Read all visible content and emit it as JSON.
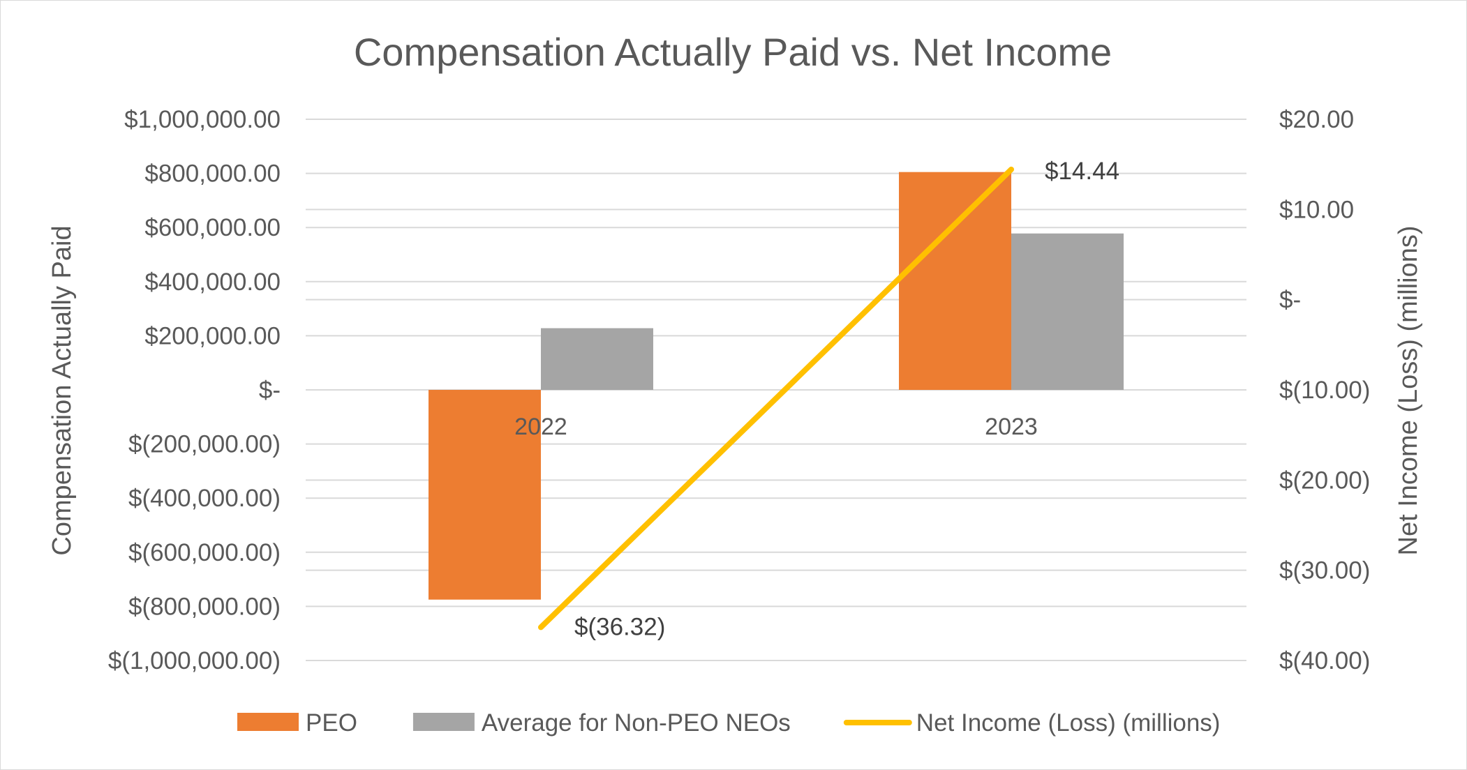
{
  "chart_data": {
    "type": "bar",
    "title": "Compensation Actually Paid vs. Net Income",
    "categories": [
      "2022",
      "2023"
    ],
    "series": [
      {
        "name": "PEO",
        "axis": "left",
        "kind": "bar",
        "color": "#ED7D31",
        "values": [
          -775000,
          805000
        ]
      },
      {
        "name": "Average for Non-PEO NEOs",
        "axis": "left",
        "kind": "bar",
        "color": "#A5A5A5",
        "values": [
          228000,
          578000
        ]
      },
      {
        "name": "Net Income (Loss) (millions)",
        "axis": "right",
        "kind": "line",
        "color": "#FFC000",
        "values": [
          -36.32,
          14.44
        ]
      }
    ],
    "data_labels": [
      "$(36.32)",
      "$14.44"
    ],
    "y_left": {
      "label": "Compensation Actually Paid",
      "lim": [
        -1000000,
        1000000
      ],
      "ticks": [
        1000000,
        800000,
        600000,
        400000,
        200000,
        0,
        -200000,
        -400000,
        -600000,
        -800000,
        -1000000
      ],
      "tick_labels": [
        "$1,000,000.00",
        "$800,000.00",
        "$600,000.00",
        "$400,000.00",
        "$200,000.00",
        "$-",
        "$(200,000.00)",
        "$(400,000.00)",
        "$(600,000.00)",
        "$(800,000.00)",
        "$(1,000,000.00)"
      ]
    },
    "y_right": {
      "label": "Net Income (Loss) (millions)",
      "lim": [
        -40,
        20
      ],
      "ticks": [
        20,
        10,
        0,
        -10,
        -20,
        -30,
        -40
      ],
      "tick_labels": [
        "$20.00",
        "$10.00",
        "$-",
        "$(10.00)",
        "$(20.00)",
        "$(30.00)",
        "$(40.00)"
      ]
    },
    "grid": true,
    "legend_position": "bottom"
  }
}
